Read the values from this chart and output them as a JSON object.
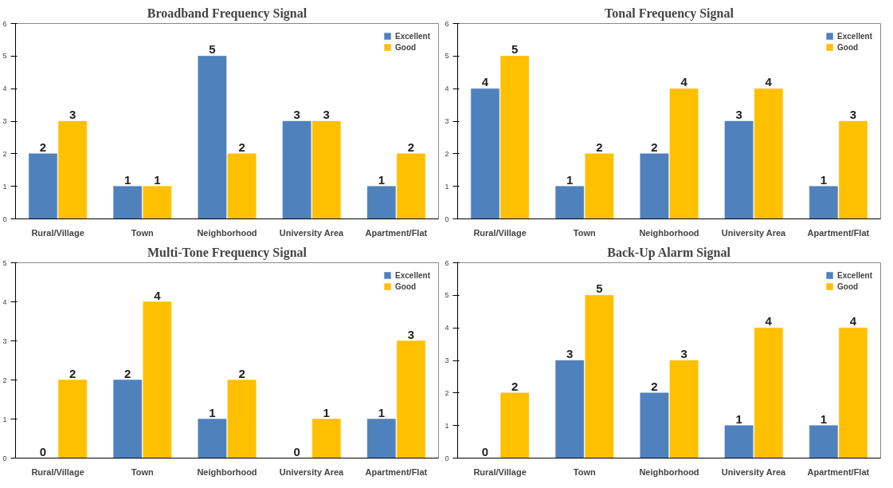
{
  "chart_data": [
    {
      "type": "bar",
      "title": "Broadband Frequency Signal",
      "categories": [
        "Rural/Village",
        "Town",
        "Neighborhood",
        "University Area",
        "Apartment/Flat"
      ],
      "series": [
        {
          "name": "Excellent",
          "color": "#4f81bd",
          "values": [
            2,
            1,
            5,
            3,
            1
          ]
        },
        {
          "name": "Good",
          "color": "#ffc000",
          "values": [
            3,
            1,
            2,
            3,
            2
          ]
        }
      ],
      "ylim": [
        0,
        6
      ],
      "yticks": [
        0,
        1,
        2,
        3,
        4,
        5,
        6
      ],
      "data_labels": true,
      "legend": "top right",
      "grid": false
    },
    {
      "type": "bar",
      "title": "Tonal Frequency Signal",
      "categories": [
        "Rural/Village",
        "Town",
        "Neighborhood",
        "University Area",
        "Apartment/Flat"
      ],
      "series": [
        {
          "name": "Excellent",
          "color": "#4f81bd",
          "values": [
            4,
            1,
            2,
            3,
            1
          ]
        },
        {
          "name": "Good",
          "color": "#ffc000",
          "values": [
            5,
            2,
            4,
            4,
            3
          ]
        }
      ],
      "ylim": [
        0,
        6
      ],
      "yticks": [
        0,
        1,
        2,
        3,
        4,
        5,
        6
      ],
      "data_labels": true,
      "legend": "top right",
      "grid": false
    },
    {
      "type": "bar",
      "title": "Multi-Tone Frequency Signal",
      "categories": [
        "Rural/Village",
        "Town",
        "Neighborhood",
        "University Area",
        "Apartment/Flat"
      ],
      "series": [
        {
          "name": "Excellent",
          "color": "#4f81bd",
          "values": [
            0,
            2,
            1,
            0,
            1
          ]
        },
        {
          "name": "Good",
          "color": "#ffc000",
          "values": [
            2,
            4,
            2,
            1,
            3
          ]
        }
      ],
      "ylim": [
        0,
        5
      ],
      "yticks": [
        0,
        1,
        2,
        3,
        4,
        5
      ],
      "data_labels": true,
      "legend": "top right",
      "grid": false
    },
    {
      "type": "bar",
      "title": "Back-Up Alarm Signal",
      "categories": [
        "Rural/Village",
        "Town",
        "Neighborhood",
        "University Area",
        "Apartment/Flat"
      ],
      "series": [
        {
          "name": "Excellent",
          "color": "#4f81bd",
          "values": [
            0,
            3,
            2,
            1,
            1
          ]
        },
        {
          "name": "Good",
          "color": "#ffc000",
          "values": [
            2,
            5,
            3,
            4,
            4
          ]
        }
      ],
      "ylim": [
        0,
        6
      ],
      "yticks": [
        0,
        1,
        2,
        3,
        4,
        5,
        6
      ],
      "data_labels": true,
      "legend": "top right",
      "grid": false
    }
  ]
}
